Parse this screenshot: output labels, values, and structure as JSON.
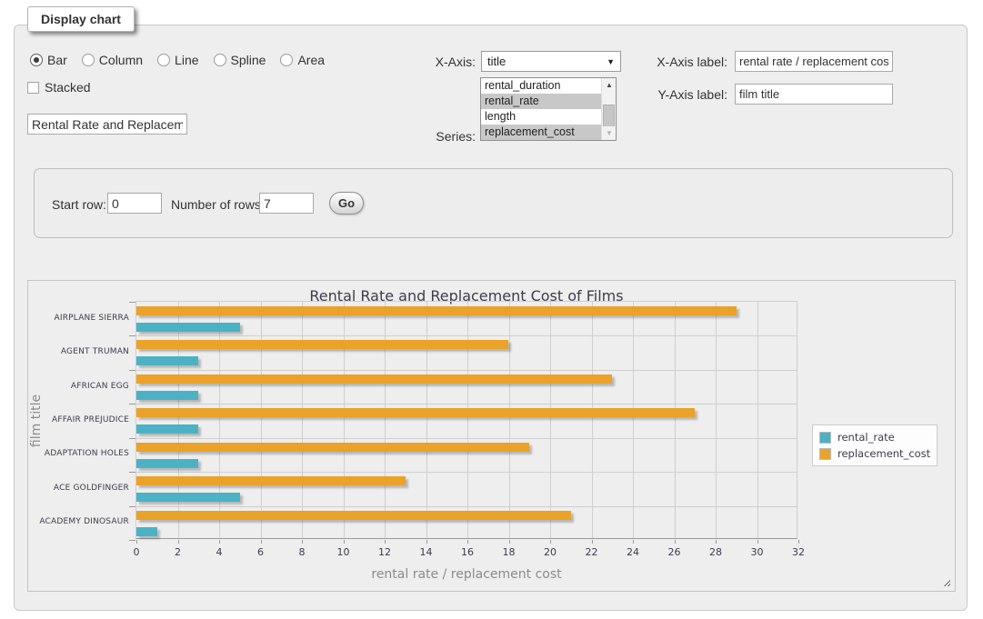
{
  "fieldset_legend": "Display chart",
  "controls": {
    "chart_types": [
      {
        "label": "Bar",
        "selected": true
      },
      {
        "label": "Column",
        "selected": false
      },
      {
        "label": "Line",
        "selected": false
      },
      {
        "label": "Spline",
        "selected": false
      },
      {
        "label": "Area",
        "selected": false
      }
    ],
    "stacked": {
      "label": "Stacked",
      "checked": false
    },
    "title_input": {
      "value": "Rental Rate and Replacement Cost of Films"
    },
    "x_axis": {
      "label": "X-Axis:",
      "selected_option": "title"
    },
    "series": {
      "label": "Series:",
      "options": [
        {
          "label": "rental_duration",
          "selected": false
        },
        {
          "label": "rental_rate",
          "selected": true
        },
        {
          "label": "length",
          "selected": false
        },
        {
          "label": "replacement_cost",
          "selected": true
        }
      ]
    },
    "x_axis_label": {
      "label": "X-Axis label:",
      "value": "rental rate / replacement cost"
    },
    "y_axis_label": {
      "label": "Y-Axis label:",
      "value": "film title"
    }
  },
  "row_panel": {
    "start_row_label": "Start row:",
    "start_row_value": "0",
    "num_rows_label": "Number of rows:",
    "num_rows_value": "7",
    "go_label": "Go"
  },
  "chart_data": {
    "type": "bar",
    "orientation": "horizontal",
    "title": "Rental Rate and Replacement Cost of Films",
    "xlabel": "rental rate / replacement cost",
    "ylabel": "film title",
    "categories": [
      "AIRPLANE SIERRA",
      "AGENT TRUMAN",
      "AFRICAN EGG",
      "AFFAIR PREJUDICE",
      "ADAPTATION HOLES",
      "ACE GOLDFINGER",
      "ACADEMY DINOSAUR"
    ],
    "series": [
      {
        "name": "rental_rate",
        "color": "#4bb2c5",
        "values": [
          4.99,
          2.99,
          2.99,
          2.99,
          2.99,
          4.99,
          0.99
        ]
      },
      {
        "name": "replacement_cost",
        "color": "#eaa228",
        "values": [
          28.99,
          17.99,
          22.99,
          26.99,
          18.99,
          12.99,
          20.99
        ]
      }
    ],
    "xlim": [
      0,
      32
    ],
    "xticks": [
      0,
      2,
      4,
      6,
      8,
      10,
      12,
      14,
      16,
      18,
      20,
      22,
      24,
      26,
      28,
      30,
      32
    ],
    "grid": true,
    "legend_position": "right"
  }
}
